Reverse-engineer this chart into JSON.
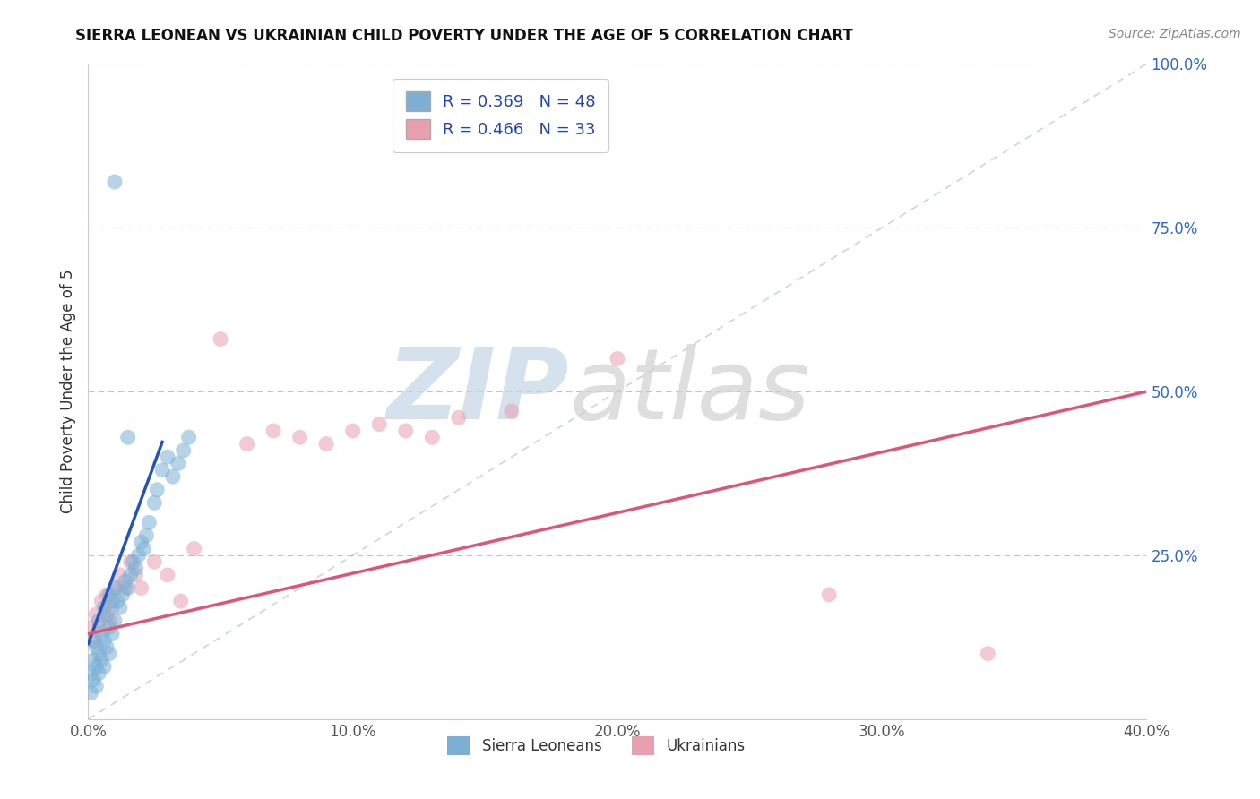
{
  "title": "SIERRA LEONEAN VS UKRAINIAN CHILD POVERTY UNDER THE AGE OF 5 CORRELATION CHART",
  "source": "Source: ZipAtlas.com",
  "ylabel": "Child Poverty Under the Age of 5",
  "xlim": [
    0.0,
    0.4
  ],
  "ylim": [
    0.0,
    1.0
  ],
  "xticks": [
    0.0,
    0.1,
    0.2,
    0.3,
    0.4
  ],
  "xtick_labels": [
    "0.0%",
    "10.0%",
    "20.0%",
    "30.0%",
    "40.0%"
  ],
  "yticks": [
    0.0,
    0.25,
    0.5,
    0.75,
    1.0
  ],
  "ytick_labels": [
    "",
    "25.0%",
    "50.0%",
    "75.0%",
    "100.0%"
  ],
  "blue_color": "#7bafd4",
  "pink_color": "#e8a0b0",
  "blue_line_color": "#2255bb",
  "pink_line_color": "#e05575",
  "R_blue": 0.369,
  "N_blue": 48,
  "R_pink": 0.466,
  "N_pink": 33,
  "background_color": "#ffffff",
  "grid_color": "#bbbbcc",
  "ref_line_color": "#aabbcc",
  "sierra_x": [
    0.001,
    0.001,
    0.002,
    0.002,
    0.002,
    0.003,
    0.003,
    0.003,
    0.004,
    0.004,
    0.004,
    0.005,
    0.005,
    0.006,
    0.006,
    0.006,
    0.007,
    0.007,
    0.008,
    0.008,
    0.008,
    0.009,
    0.009,
    0.01,
    0.01,
    0.011,
    0.012,
    0.013,
    0.014,
    0.015,
    0.016,
    0.017,
    0.018,
    0.019,
    0.02,
    0.021,
    0.022,
    0.023,
    0.025,
    0.026,
    0.028,
    0.03,
    0.032,
    0.034,
    0.036,
    0.038,
    0.01,
    0.015
  ],
  "sierra_y": [
    0.04,
    0.07,
    0.06,
    0.09,
    0.12,
    0.05,
    0.08,
    0.11,
    0.07,
    0.1,
    0.15,
    0.09,
    0.13,
    0.08,
    0.12,
    0.17,
    0.11,
    0.16,
    0.1,
    0.14,
    0.19,
    0.13,
    0.18,
    0.15,
    0.2,
    0.18,
    0.17,
    0.19,
    0.21,
    0.2,
    0.22,
    0.24,
    0.23,
    0.25,
    0.27,
    0.26,
    0.28,
    0.3,
    0.33,
    0.35,
    0.38,
    0.4,
    0.37,
    0.39,
    0.41,
    0.43,
    0.82,
    0.43
  ],
  "ukraine_x": [
    0.001,
    0.002,
    0.003,
    0.004,
    0.005,
    0.006,
    0.007,
    0.008,
    0.009,
    0.01,
    0.012,
    0.014,
    0.016,
    0.018,
    0.02,
    0.025,
    0.03,
    0.035,
    0.04,
    0.05,
    0.06,
    0.07,
    0.08,
    0.09,
    0.1,
    0.11,
    0.12,
    0.13,
    0.14,
    0.16,
    0.2,
    0.28,
    0.34
  ],
  "ukraine_y": [
    0.14,
    0.12,
    0.16,
    0.14,
    0.18,
    0.16,
    0.19,
    0.15,
    0.17,
    0.2,
    0.22,
    0.2,
    0.24,
    0.22,
    0.2,
    0.24,
    0.22,
    0.18,
    0.26,
    0.58,
    0.42,
    0.44,
    0.43,
    0.42,
    0.44,
    0.45,
    0.44,
    0.43,
    0.46,
    0.47,
    0.55,
    0.19,
    0.1
  ]
}
